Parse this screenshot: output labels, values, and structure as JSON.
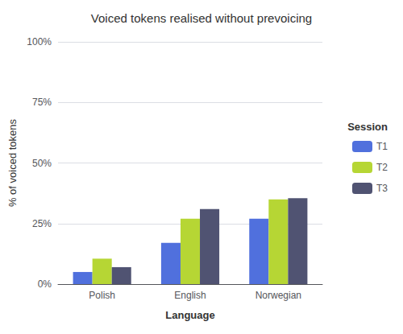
{
  "chart_data": {
    "type": "bar",
    "title": "Voiced tokens realised without prevoicing",
    "xlabel": "Language",
    "ylabel": "% of voiced tokens",
    "categories": [
      "Polish",
      "English",
      "Norwegian"
    ],
    "series": [
      {
        "name": "T1",
        "values": [
          5.0,
          17.0,
          27.0
        ]
      },
      {
        "name": "T2",
        "values": [
          10.5,
          27.0,
          35.0
        ]
      },
      {
        "name": "T3",
        "values": [
          7.0,
          31.0,
          35.5
        ]
      }
    ],
    "legend_title": "Session",
    "legend": "right",
    "ylim": [
      0,
      100
    ],
    "yticks": [
      {
        "value": 0,
        "label": "0%"
      },
      {
        "value": 25,
        "label": "25%"
      },
      {
        "value": 50,
        "label": "50%"
      },
      {
        "value": 75,
        "label": "75%"
      },
      {
        "value": 100,
        "label": "100%"
      }
    ],
    "grid": true
  }
}
